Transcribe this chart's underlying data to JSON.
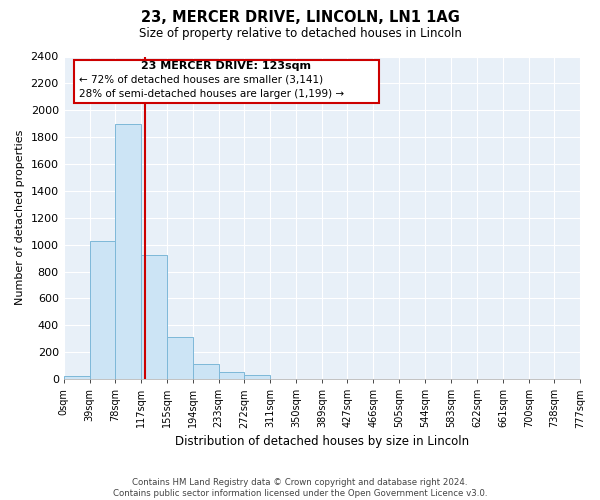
{
  "title": "23, MERCER DRIVE, LINCOLN, LN1 1AG",
  "subtitle": "Size of property relative to detached houses in Lincoln",
  "xlabel": "Distribution of detached houses by size in Lincoln",
  "ylabel": "Number of detached properties",
  "footnote1": "Contains HM Land Registry data © Crown copyright and database right 2024.",
  "footnote2": "Contains public sector information licensed under the Open Government Licence v3.0.",
  "property_label": "23 MERCER DRIVE: 123sqm",
  "annotation1": "← 72% of detached houses are smaller (3,141)",
  "annotation2": "28% of semi-detached houses are larger (1,199) →",
  "property_size": 123,
  "bin_edges": [
    0,
    39,
    78,
    117,
    155,
    194,
    233,
    272,
    311,
    350,
    389,
    427,
    466,
    505,
    544,
    583,
    622,
    661,
    700,
    738,
    777
  ],
  "bin_labels": [
    "0sqm",
    "39sqm",
    "78sqm",
    "117sqm",
    "155sqm",
    "194sqm",
    "233sqm",
    "272sqm",
    "311sqm",
    "350sqm",
    "389sqm",
    "427sqm",
    "466sqm",
    "505sqm",
    "544sqm",
    "583sqm",
    "622sqm",
    "661sqm",
    "700sqm",
    "738sqm",
    "777sqm"
  ],
  "counts": [
    25,
    1025,
    1900,
    920,
    315,
    110,
    50,
    30,
    0,
    0,
    0,
    0,
    0,
    0,
    0,
    0,
    0,
    0,
    0,
    0
  ],
  "bar_color": "#cce4f5",
  "bar_edge_color": "#7db8d8",
  "vline_color": "#cc0000",
  "vline_x": 123,
  "ylim": [
    0,
    2400
  ],
  "yticks": [
    0,
    200,
    400,
    600,
    800,
    1000,
    1200,
    1400,
    1600,
    1800,
    2000,
    2200,
    2400
  ],
  "annotation_box_facecolor": "#ffffff",
  "annotation_box_edgecolor": "#cc0000",
  "bg_color": "#ffffff",
  "plot_bg_color": "#e8f0f8",
  "grid_color": "#ffffff"
}
